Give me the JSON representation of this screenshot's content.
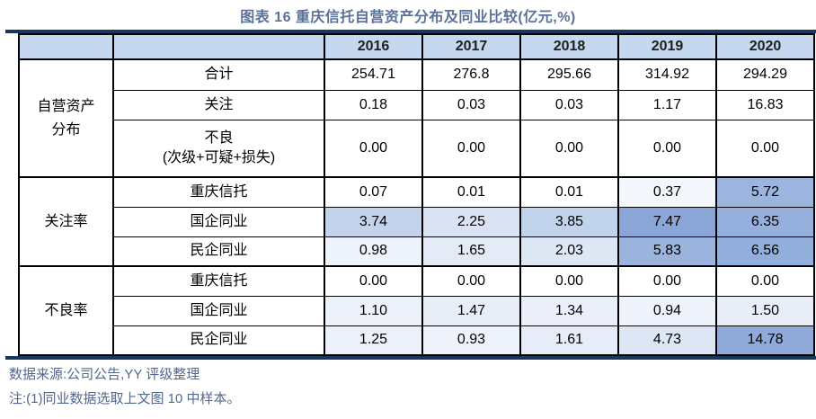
{
  "colors": {
    "rule": "#17375D",
    "title": "#5A7199",
    "note": "#54678F",
    "header_bg": "#C5D8F0"
  },
  "chart_data": {
    "type": "table",
    "title": "图表 16 重庆信托自营资产分布及同业比较(亿元,%)",
    "columns": [
      "",
      "",
      "2016",
      "2017",
      "2018",
      "2019",
      "2020"
    ],
    "groups": [
      {
        "label": "自营资产\n分布",
        "rows": [
          {
            "label": "合计",
            "values": [
              "254.71",
              "276.8",
              "295.66",
              "314.92",
              "294.29"
            ],
            "bg": [
              "#FFFFFF",
              "#FFFFFF",
              "#FFFFFF",
              "#FFFFFF",
              "#FFFFFF"
            ]
          },
          {
            "label": "关注",
            "values": [
              "0.18",
              "0.03",
              "0.03",
              "1.17",
              "16.83"
            ],
            "bg": [
              "#FFFFFF",
              "#FFFFFF",
              "#FFFFFF",
              "#FFFFFF",
              "#FFFFFF"
            ]
          },
          {
            "label": "不良\n(次级+可疑+损失)",
            "values": [
              "0.00",
              "0.00",
              "0.00",
              "0.00",
              "0.00"
            ],
            "bg": [
              "#FFFFFF",
              "#FFFFFF",
              "#FFFFFF",
              "#FFFFFF",
              "#FFFFFF"
            ]
          }
        ]
      },
      {
        "label": "关注率",
        "rows": [
          {
            "label": "重庆信托",
            "values": [
              "0.07",
              "0.01",
              "0.01",
              "0.37",
              "5.72"
            ],
            "bg": [
              "#FFFFFF",
              "#FFFFFF",
              "#FFFFFF",
              "#F3F7FC",
              "#9BB5DF"
            ]
          },
          {
            "label": "国企同业",
            "values": [
              "3.74",
              "2.25",
              "3.85",
              "7.47",
              "6.35"
            ],
            "bg": [
              "#C3D3EC",
              "#D9E3F4",
              "#C1D2EB",
              "#89A6D6",
              "#95B0DC"
            ]
          },
          {
            "label": "民企同业",
            "values": [
              "0.98",
              "1.65",
              "2.03",
              "5.83",
              "6.56"
            ],
            "bg": [
              "#EFF3FB",
              "#E4EBF7",
              "#DEE8F5",
              "#9BB4DE",
              "#92AEDB"
            ]
          }
        ]
      },
      {
        "label": "不良率",
        "rows": [
          {
            "label": "重庆信托",
            "values": [
              "0.00",
              "0.00",
              "0.00",
              "0.00",
              "0.00"
            ],
            "bg": [
              "#FFFFFF",
              "#FFFFFF",
              "#FFFFFF",
              "#FFFFFF",
              "#FFFFFF"
            ]
          },
          {
            "label": "国企同业",
            "values": [
              "1.10",
              "1.47",
              "1.34",
              "0.94",
              "1.50"
            ],
            "bg": [
              "#EDF2FA",
              "#E8EEF8",
              "#EAEFF9",
              "#EFF3FB",
              "#E8EEF8"
            ]
          },
          {
            "label": "民企同业",
            "values": [
              "1.25",
              "0.93",
              "1.61",
              "4.73",
              "14.78"
            ],
            "bg": [
              "#EBF0F9",
              "#EFF3FB",
              "#E7EDF8",
              "#DDE6F5",
              "#90AAD9"
            ]
          }
        ]
      }
    ]
  },
  "footer": {
    "source": "数据来源:公司公告,YY 评级整理",
    "note": "注:(1)同业数据选取上文图 10 中样本。"
  }
}
